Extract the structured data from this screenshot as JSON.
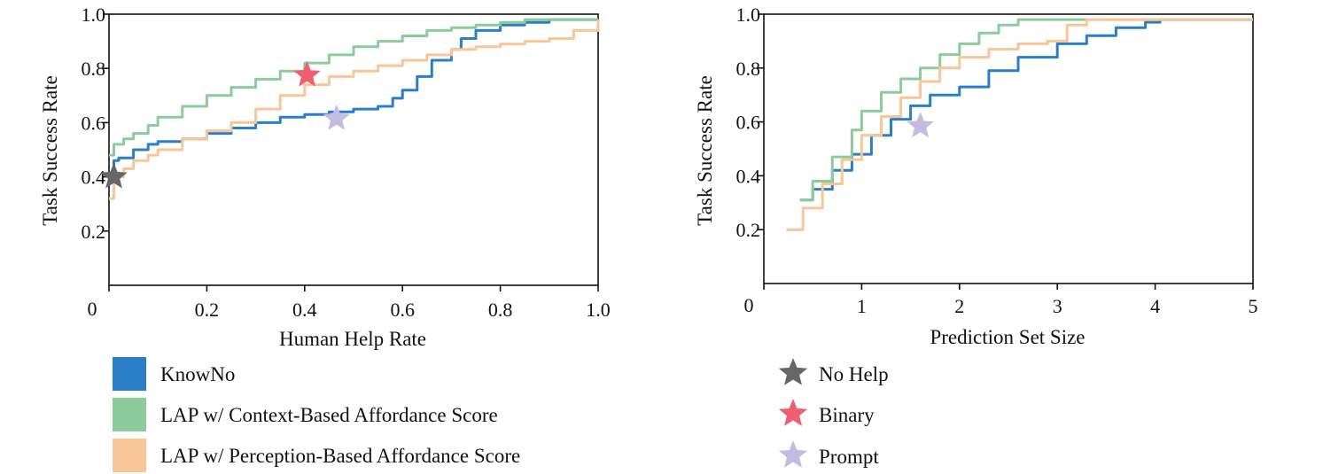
{
  "colors": {
    "knowno": "#2b7fc8",
    "lap_context": "#8ccc9c",
    "lap_perception": "#f8c698",
    "no_help": "#666666",
    "binary": "#ee5f74",
    "prompt": "#c2bce0"
  },
  "legend_left": [
    {
      "label": "KnowNo",
      "color": "#2b7fc8",
      "marker": "square"
    },
    {
      "label": "LAP w/ Context-Based Affordance Score",
      "color": "#8ccc9c",
      "marker": "square"
    },
    {
      "label": "LAP w/ Perception-Based Affordance Score",
      "color": "#f8c698",
      "marker": "square"
    }
  ],
  "legend_right": [
    {
      "label": "No Help",
      "color": "#666666",
      "marker": "star"
    },
    {
      "label": "Binary",
      "color": "#ee5f74",
      "marker": "star"
    },
    {
      "label": "Prompt",
      "color": "#c2bce0",
      "marker": "star"
    }
  ],
  "chart_data": [
    {
      "type": "line",
      "xlabel": "Human Help Rate",
      "ylabel": "Task Success Rate",
      "xlim": [
        0,
        1.0
      ],
      "ylim": [
        0,
        1.0
      ],
      "x_ticks": [
        "0",
        "0.2",
        "0.4",
        "0.6",
        "0.8",
        "1.0"
      ],
      "y_ticks": [
        "0.2",
        "0.4",
        "0.6",
        "0.8",
        "1.0"
      ],
      "grid": false,
      "series": [
        {
          "name": "KnowNo",
          "color": "#2b7fc8",
          "x": [
            0.0,
            0.01,
            0.02,
            0.05,
            0.08,
            0.1,
            0.15,
            0.2,
            0.25,
            0.3,
            0.35,
            0.4,
            0.45,
            0.5,
            0.55,
            0.58,
            0.6,
            0.63,
            0.66,
            0.7,
            0.72,
            0.75,
            0.8,
            0.85,
            0.9,
            0.95,
            1.0
          ],
          "y": [
            0.4,
            0.46,
            0.47,
            0.5,
            0.52,
            0.53,
            0.54,
            0.56,
            0.58,
            0.6,
            0.62,
            0.63,
            0.64,
            0.65,
            0.66,
            0.69,
            0.72,
            0.77,
            0.83,
            0.87,
            0.91,
            0.94,
            0.96,
            0.97,
            0.98,
            0.98,
            0.98
          ]
        },
        {
          "name": "LAP w/ Context-Based Affordance Score",
          "color": "#8ccc9c",
          "x": [
            0.0,
            0.01,
            0.03,
            0.05,
            0.08,
            0.1,
            0.15,
            0.2,
            0.25,
            0.3,
            0.35,
            0.4,
            0.45,
            0.5,
            0.55,
            0.6,
            0.65,
            0.7,
            0.75,
            0.8,
            0.85,
            0.9,
            0.95,
            1.0
          ],
          "y": [
            0.48,
            0.52,
            0.54,
            0.56,
            0.59,
            0.62,
            0.66,
            0.7,
            0.73,
            0.76,
            0.79,
            0.82,
            0.85,
            0.88,
            0.9,
            0.92,
            0.94,
            0.95,
            0.96,
            0.97,
            0.98,
            0.98,
            0.98,
            0.98
          ]
        },
        {
          "name": "LAP w/ Perception-Based Affordance Score",
          "color": "#f8c698",
          "x": [
            0.0,
            0.01,
            0.03,
            0.05,
            0.08,
            0.1,
            0.15,
            0.2,
            0.25,
            0.3,
            0.35,
            0.4,
            0.45,
            0.5,
            0.55,
            0.6,
            0.65,
            0.7,
            0.75,
            0.8,
            0.85,
            0.9,
            0.95,
            1.0
          ],
          "y": [
            0.32,
            0.4,
            0.43,
            0.46,
            0.48,
            0.5,
            0.54,
            0.57,
            0.6,
            0.65,
            0.7,
            0.74,
            0.77,
            0.79,
            0.81,
            0.83,
            0.85,
            0.87,
            0.88,
            0.89,
            0.9,
            0.91,
            0.94,
            0.98
          ]
        }
      ],
      "markers": [
        {
          "name": "No Help",
          "x": 0.01,
          "y": 0.4,
          "color": "#666666"
        },
        {
          "name": "Binary",
          "x": 0.405,
          "y": 0.775,
          "color": "#ee5f74"
        },
        {
          "name": "Prompt",
          "x": 0.465,
          "y": 0.615,
          "color": "#c2bce0"
        }
      ]
    },
    {
      "type": "line",
      "xlabel": "Prediction Set Size",
      "ylabel": "Task Success Rate",
      "xlim": [
        0,
        5
      ],
      "ylim": [
        0,
        1.0
      ],
      "x_ticks": [
        "0",
        "1",
        "2",
        "3",
        "4",
        "5"
      ],
      "y_ticks": [
        "0.2",
        "0.4",
        "0.6",
        "0.8",
        "1.0"
      ],
      "grid": false,
      "series": [
        {
          "name": "KnowNo",
          "color": "#2b7fc8",
          "x": [
            0.37,
            0.5,
            0.7,
            0.9,
            1.1,
            1.3,
            1.5,
            1.7,
            2.0,
            2.3,
            2.6,
            3.0,
            3.3,
            3.6,
            3.9,
            4.05,
            4.5,
            5.0
          ],
          "y": [
            0.31,
            0.35,
            0.42,
            0.48,
            0.55,
            0.61,
            0.66,
            0.7,
            0.73,
            0.79,
            0.84,
            0.89,
            0.92,
            0.95,
            0.97,
            0.98,
            0.98,
            0.98
          ]
        },
        {
          "name": "LAP w/ Context-Based Affordance Score",
          "color": "#8ccc9c",
          "x": [
            0.37,
            0.5,
            0.7,
            0.9,
            1.0,
            1.2,
            1.4,
            1.6,
            1.8,
            2.0,
            2.2,
            2.4,
            2.6,
            3.0,
            3.5,
            4.0,
            5.0
          ],
          "y": [
            0.31,
            0.38,
            0.47,
            0.57,
            0.64,
            0.71,
            0.76,
            0.8,
            0.85,
            0.89,
            0.93,
            0.96,
            0.98,
            0.98,
            0.98,
            0.98,
            0.98
          ]
        },
        {
          "name": "LAP w/ Perception-Based Affordance Score",
          "color": "#f8c698",
          "x": [
            0.23,
            0.4,
            0.6,
            0.8,
            1.0,
            1.2,
            1.4,
            1.6,
            1.8,
            2.0,
            2.3,
            2.6,
            2.9,
            3.1,
            3.3,
            3.6,
            4.0,
            5.0
          ],
          "y": [
            0.2,
            0.28,
            0.37,
            0.46,
            0.55,
            0.62,
            0.69,
            0.75,
            0.8,
            0.84,
            0.87,
            0.89,
            0.9,
            0.96,
            0.98,
            0.98,
            0.98,
            0.98
          ]
        }
      ],
      "markers": [
        {
          "name": "Prompt",
          "x": 1.6,
          "y": 0.585,
          "color": "#c2bce0"
        }
      ]
    }
  ]
}
